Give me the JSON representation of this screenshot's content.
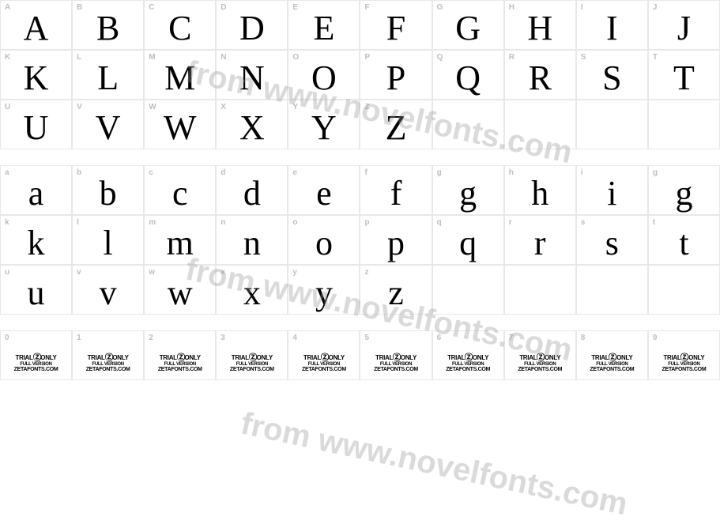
{
  "watermark_text": "from www.novelfonts.com",
  "upper": {
    "rows": [
      [
        "A",
        "B",
        "C",
        "D",
        "E",
        "F",
        "G",
        "H",
        "I",
        "J"
      ],
      [
        "K",
        "L",
        "M",
        "N",
        "O",
        "P",
        "Q",
        "R",
        "S",
        "T"
      ],
      [
        "U",
        "V",
        "W",
        "X",
        "Y",
        "Z",
        "",
        "",
        "",
        ""
      ]
    ]
  },
  "lower": {
    "labels": [
      [
        "a",
        "b",
        "c",
        "d",
        "e",
        "f",
        "g",
        "h",
        "i",
        "g"
      ],
      [
        "k",
        "l",
        "m",
        "n",
        "o",
        "p",
        "q",
        "r",
        "s",
        "t"
      ],
      [
        "u",
        "v",
        "w",
        "x",
        "y",
        "z",
        "",
        "",
        "",
        ""
      ]
    ],
    "glyphs": [
      [
        "a",
        "b",
        "c",
        "d",
        "e",
        "f",
        "g",
        "h",
        "i",
        "g"
      ],
      [
        "k",
        "l",
        "m",
        "n",
        "o",
        "p",
        "q",
        "r",
        "s",
        "t"
      ],
      [
        "u",
        "v",
        "w",
        "x",
        "y",
        "z",
        "",
        "",
        "",
        ""
      ]
    ]
  },
  "digits": [
    "0",
    "1",
    "2",
    "3",
    "4",
    "5",
    "6",
    "7",
    "8",
    "9"
  ],
  "trial_mark": {
    "line1_a": "TRIAL",
    "line1_b": "ONLY",
    "line2": "FULL VERSION",
    "line3": "ZETAFONTS.COM"
  },
  "colors": {
    "border": "#e8e8e8",
    "label": "#bfbfbf",
    "glyph": "#000000",
    "background": "#ffffff",
    "watermark": "rgba(150,150,150,0.35)"
  }
}
